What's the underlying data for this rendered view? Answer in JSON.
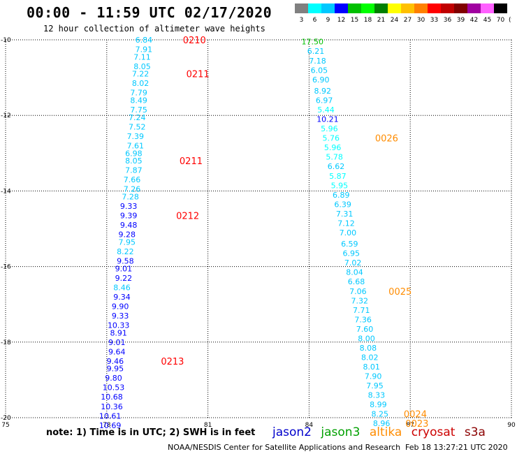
{
  "title": "00:00 - 11:59 UTC 02/17/2020",
  "subtitle": "12 hour collection of altimeter wave heights",
  "colorbar": {
    "unit": "(ft)",
    "labels": [
      "3",
      "6",
      "9",
      "12",
      "15",
      "18",
      "21",
      "24",
      "27",
      "30",
      "33",
      "36",
      "39",
      "42",
      "45",
      "70"
    ],
    "colors": [
      "#808080",
      "#00ffff",
      "#00c8ff",
      "#0000ff",
      "#00c000",
      "#00ff00",
      "#008000",
      "#ffff00",
      "#ffc000",
      "#ff8000",
      "#ff0000",
      "#c00000",
      "#800000",
      "#a000a0",
      "#ff60ff",
      "#000000"
    ]
  },
  "note": "note: 1) Time is in UTC; 2) SWH is in feet",
  "legend": [
    {
      "name": "jason2",
      "color": "#0000cc"
    },
    {
      "name": "jason3",
      "color": "#00a000"
    },
    {
      "name": "altika",
      "color": "#ff8c00"
    },
    {
      "name": "cryosat",
      "color": "#cc0000"
    },
    {
      "name": "s3a",
      "color": "#8b0000"
    }
  ],
  "credit": "NOAA/NESDIS Center for Satellite Applications and Research",
  "stamp": "Feb 18 13:27:21 UTC 2020",
  "chart_data": {
    "type": "scatter",
    "xlim": [
      75,
      90
    ],
    "ylim": [
      -20,
      -10
    ],
    "x_ticks": [
      "75",
      "78",
      "81",
      "84",
      "87",
      "90"
    ],
    "y_ticks": [
      "-10",
      "-12",
      "-14",
      "-16",
      "-18",
      "-20"
    ],
    "grid": true,
    "tracks": [
      {
        "name": "cryosat",
        "points": [
          {
            "x": 79.1,
            "y": -10.0,
            "v": "6.84",
            "c": "#00c8ff"
          },
          {
            "x": 79.1,
            "y": -10.25,
            "v": "7.91",
            "c": "#00c8ff"
          },
          {
            "x": 79.05,
            "y": -10.45,
            "v": "7.11",
            "c": "#00c8ff"
          },
          {
            "x": 79.05,
            "y": -10.7,
            "v": "8.05",
            "c": "#00c8ff"
          },
          {
            "x": 79.0,
            "y": -10.9,
            "v": "7.22",
            "c": "#00c8ff"
          },
          {
            "x": 79.0,
            "y": -11.15,
            "v": "8.02",
            "c": "#00c8ff"
          },
          {
            "x": 78.95,
            "y": -11.4,
            "v": "7.79",
            "c": "#00c8ff"
          },
          {
            "x": 78.95,
            "y": -11.6,
            "v": "8.49",
            "c": "#00c8ff"
          },
          {
            "x": 78.95,
            "y": -11.85,
            "v": "7.75",
            "c": "#00c8ff"
          },
          {
            "x": 78.9,
            "y": -12.05,
            "v": "7.24",
            "c": "#00c8ff"
          },
          {
            "x": 78.9,
            "y": -12.3,
            "v": "7.52",
            "c": "#00c8ff"
          },
          {
            "x": 78.85,
            "y": -12.55,
            "v": "7.39",
            "c": "#00c8ff"
          },
          {
            "x": 78.85,
            "y": -12.8,
            "v": "7.61",
            "c": "#00c8ff"
          },
          {
            "x": 78.8,
            "y": -13.0,
            "v": "6.98",
            "c": "#00c8ff"
          },
          {
            "x": 78.8,
            "y": -13.2,
            "v": "8.05",
            "c": "#00c8ff"
          },
          {
            "x": 78.8,
            "y": -13.45,
            "v": "7.87",
            "c": "#00c8ff"
          },
          {
            "x": 78.75,
            "y": -13.7,
            "v": "7.66",
            "c": "#00c8ff"
          },
          {
            "x": 78.75,
            "y": -13.95,
            "v": "7.26",
            "c": "#00c8ff"
          },
          {
            "x": 78.7,
            "y": -14.15,
            "v": "7.28",
            "c": "#00c8ff"
          },
          {
            "x": 78.65,
            "y": -14.4,
            "v": "9.33",
            "c": "#0000ff"
          },
          {
            "x": 78.65,
            "y": -14.65,
            "v": "9.39",
            "c": "#0000ff"
          },
          {
            "x": 78.65,
            "y": -14.9,
            "v": "9.48",
            "c": "#0000ff"
          },
          {
            "x": 78.6,
            "y": -15.15,
            "v": "9.28",
            "c": "#0000ff"
          },
          {
            "x": 78.6,
            "y": -15.35,
            "v": "7.95",
            "c": "#00c8ff"
          },
          {
            "x": 78.55,
            "y": -15.6,
            "v": "8.22",
            "c": "#00c8ff"
          },
          {
            "x": 78.55,
            "y": -15.85,
            "v": "9.58",
            "c": "#0000ff"
          },
          {
            "x": 78.5,
            "y": -16.05,
            "v": "9.01",
            "c": "#0000ff"
          },
          {
            "x": 78.5,
            "y": -16.3,
            "v": "9.22",
            "c": "#0000ff"
          },
          {
            "x": 78.45,
            "y": -16.55,
            "v": "8.46",
            "c": "#00c8ff"
          },
          {
            "x": 78.45,
            "y": -16.8,
            "v": "9.34",
            "c": "#0000ff"
          },
          {
            "x": 78.4,
            "y": -17.05,
            "v": "9.90",
            "c": "#0000ff"
          },
          {
            "x": 78.4,
            "y": -17.3,
            "v": "9.33",
            "c": "#0000ff"
          },
          {
            "x": 78.35,
            "y": -17.55,
            "v": "10.33",
            "c": "#0000ff"
          },
          {
            "x": 78.35,
            "y": -17.75,
            "v": "8.91",
            "c": "#0000ff"
          },
          {
            "x": 78.3,
            "y": -18.0,
            "v": "9.01",
            "c": "#0000ff"
          },
          {
            "x": 78.3,
            "y": -18.25,
            "v": "9.64",
            "c": "#0000ff"
          },
          {
            "x": 78.25,
            "y": -18.5,
            "v": "9.46",
            "c": "#0000ff"
          },
          {
            "x": 78.25,
            "y": -18.7,
            "v": "9.95",
            "c": "#0000ff"
          },
          {
            "x": 78.2,
            "y": -18.95,
            "v": "9.80",
            "c": "#0000ff"
          },
          {
            "x": 78.2,
            "y": -19.2,
            "v": "10.53",
            "c": "#0000ff"
          },
          {
            "x": 78.15,
            "y": -19.45,
            "v": "10.68",
            "c": "#0000ff"
          },
          {
            "x": 78.15,
            "y": -19.7,
            "v": "10.36",
            "c": "#0000ff"
          },
          {
            "x": 78.1,
            "y": -19.95,
            "v": "10.61",
            "c": "#0000ff"
          },
          {
            "x": 78.1,
            "y": -20.2,
            "v": "10.69",
            "c": "#0000ff"
          }
        ]
      },
      {
        "name": "altika",
        "points": [
          {
            "x": 84.1,
            "y": -10.05,
            "v": "17.50",
            "c": "#00c000"
          },
          {
            "x": 84.2,
            "y": -10.3,
            "v": "6.21",
            "c": "#00c8ff"
          },
          {
            "x": 84.25,
            "y": -10.55,
            "v": "7.18",
            "c": "#00c8ff"
          },
          {
            "x": 84.3,
            "y": -10.8,
            "v": "6.05",
            "c": "#00c8ff"
          },
          {
            "x": 84.35,
            "y": -11.05,
            "v": "6.90",
            "c": "#00c8ff"
          },
          {
            "x": 84.4,
            "y": -11.35,
            "v": "8.92",
            "c": "#00c8ff"
          },
          {
            "x": 84.45,
            "y": -11.6,
            "v": "6.97",
            "c": "#00c8ff"
          },
          {
            "x": 84.5,
            "y": -11.85,
            "v": "5.44",
            "c": "#00ffff"
          },
          {
            "x": 84.55,
            "y": -12.1,
            "v": "10.21",
            "c": "#0000ff"
          },
          {
            "x": 84.6,
            "y": -12.35,
            "v": "5.96",
            "c": "#00ffff"
          },
          {
            "x": 84.65,
            "y": -12.6,
            "v": "5.76",
            "c": "#00ffff"
          },
          {
            "x": 84.7,
            "y": -12.85,
            "v": "5.96",
            "c": "#00ffff"
          },
          {
            "x": 84.75,
            "y": -13.1,
            "v": "5.78",
            "c": "#00ffff"
          },
          {
            "x": 84.8,
            "y": -13.35,
            "v": "6.62",
            "c": "#00c8ff"
          },
          {
            "x": 84.85,
            "y": -13.6,
            "v": "5.87",
            "c": "#00ffff"
          },
          {
            "x": 84.9,
            "y": -13.85,
            "v": "5.95",
            "c": "#00ffff"
          },
          {
            "x": 84.95,
            "y": -14.1,
            "v": "6.89",
            "c": "#00c8ff"
          },
          {
            "x": 85.0,
            "y": -14.35,
            "v": "6.39",
            "c": "#00c8ff"
          },
          {
            "x": 85.05,
            "y": -14.6,
            "v": "7.31",
            "c": "#00c8ff"
          },
          {
            "x": 85.1,
            "y": -14.85,
            "v": "7.12",
            "c": "#00c8ff"
          },
          {
            "x": 85.15,
            "y": -15.1,
            "v": "7.00",
            "c": "#00c8ff"
          },
          {
            "x": 85.2,
            "y": -15.4,
            "v": "6.59",
            "c": "#00c8ff"
          },
          {
            "x": 85.25,
            "y": -15.65,
            "v": "6.95",
            "c": "#00c8ff"
          },
          {
            "x": 85.3,
            "y": -15.9,
            "v": "7.02",
            "c": "#00c8ff"
          },
          {
            "x": 85.35,
            "y": -16.15,
            "v": "8.04",
            "c": "#00c8ff"
          },
          {
            "x": 85.4,
            "y": -16.4,
            "v": "6.68",
            "c": "#00c8ff"
          },
          {
            "x": 85.45,
            "y": -16.65,
            "v": "7.06",
            "c": "#00c8ff"
          },
          {
            "x": 85.5,
            "y": -16.9,
            "v": "7.32",
            "c": "#00c8ff"
          },
          {
            "x": 85.55,
            "y": -17.15,
            "v": "7.71",
            "c": "#00c8ff"
          },
          {
            "x": 85.6,
            "y": -17.4,
            "v": "7.36",
            "c": "#00c8ff"
          },
          {
            "x": 85.65,
            "y": -17.65,
            "v": "7.60",
            "c": "#00c8ff"
          },
          {
            "x": 85.7,
            "y": -17.9,
            "v": "8.00",
            "c": "#00c8ff"
          },
          {
            "x": 85.75,
            "y": -18.15,
            "v": "8.08",
            "c": "#00c8ff"
          },
          {
            "x": 85.8,
            "y": -18.4,
            "v": "8.02",
            "c": "#00c8ff"
          },
          {
            "x": 85.85,
            "y": -18.65,
            "v": "8.01",
            "c": "#00c8ff"
          },
          {
            "x": 85.9,
            "y": -18.9,
            "v": "7.90",
            "c": "#00c8ff"
          },
          {
            "x": 85.95,
            "y": -19.15,
            "v": "7.95",
            "c": "#00c8ff"
          },
          {
            "x": 86.0,
            "y": -19.4,
            "v": "8.33",
            "c": "#00c8ff"
          },
          {
            "x": 86.05,
            "y": -19.65,
            "v": "8.99",
            "c": "#00c8ff"
          },
          {
            "x": 86.1,
            "y": -19.9,
            "v": "8.25",
            "c": "#00c8ff"
          },
          {
            "x": 86.15,
            "y": -20.15,
            "v": "8.96",
            "c": "#00c8ff"
          }
        ]
      }
    ],
    "time_labels": [
      {
        "x": 80.6,
        "y": -10.0,
        "text": "0210",
        "color": "#ff0000"
      },
      {
        "x": 80.7,
        "y": -10.9,
        "text": "0211",
        "color": "#ff0000"
      },
      {
        "x": 80.5,
        "y": -13.2,
        "text": "0211",
        "color": "#ff0000"
      },
      {
        "x": 80.4,
        "y": -14.65,
        "text": "0212",
        "color": "#ff0000"
      },
      {
        "x": 79.95,
        "y": -18.5,
        "text": "0213",
        "color": "#ff0000"
      },
      {
        "x": 86.3,
        "y": -12.6,
        "text": "0026",
        "color": "#ff8c00"
      },
      {
        "x": 86.7,
        "y": -16.65,
        "text": "0025",
        "color": "#ff8c00"
      },
      {
        "x": 87.15,
        "y": -19.9,
        "text": "0024",
        "color": "#ff8c00"
      },
      {
        "x": 87.2,
        "y": -20.15,
        "text": "0023",
        "color": "#ff8c00"
      }
    ]
  }
}
